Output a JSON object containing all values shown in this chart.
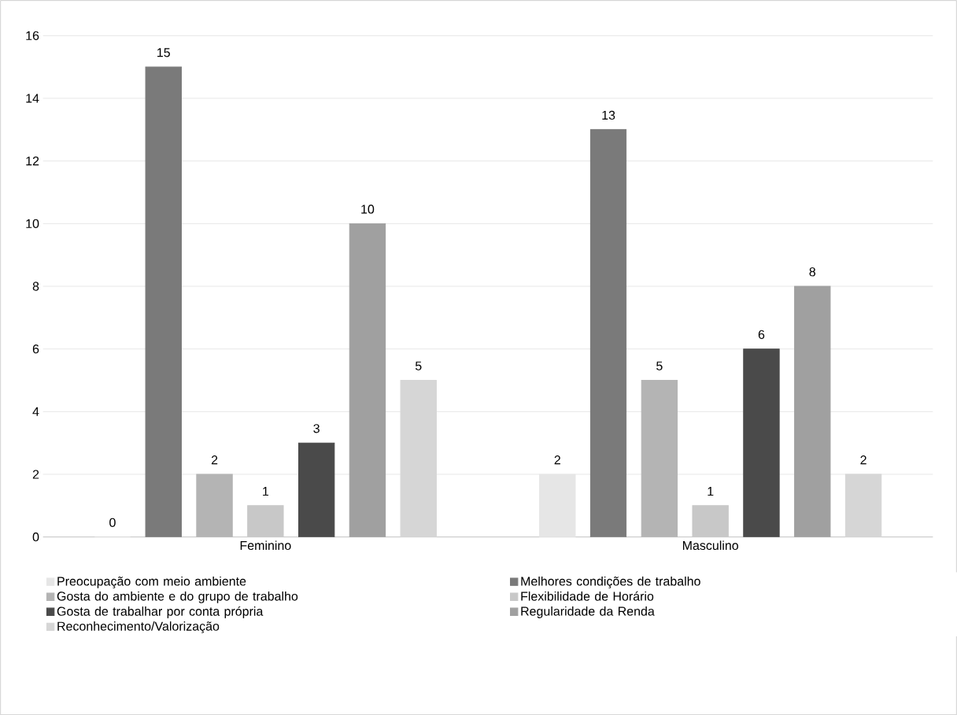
{
  "chart_data": {
    "type": "bar",
    "categories": [
      "Feminino",
      "Masculino"
    ],
    "series": [
      {
        "name": "Preocupação com meio ambiente",
        "color": "#e6e6e6",
        "values": [
          0,
          2
        ]
      },
      {
        "name": "Melhores condições de trabalho",
        "color": "#7a7a7a",
        "values": [
          15,
          13
        ]
      },
      {
        "name": "Gosta do ambiente e do grupo de trabalho",
        "color": "#b4b4b4",
        "values": [
          2,
          5
        ]
      },
      {
        "name": "Flexibilidade de Horário",
        "color": "#c8c8c8",
        "values": [
          1,
          1
        ]
      },
      {
        "name": "Gosta de trabalhar por conta própria",
        "color": "#4a4a4a",
        "values": [
          3,
          6
        ]
      },
      {
        "name": "Regularidade da Renda",
        "color": "#a0a0a0",
        "values": [
          10,
          8
        ]
      },
      {
        "name": "Reconhecimento/Valorização",
        "color": "#d6d6d6",
        "values": [
          5,
          2
        ]
      }
    ],
    "ylim": [
      0,
      16
    ],
    "yticks": [
      0,
      2,
      4,
      6,
      8,
      10,
      12,
      14,
      16
    ],
    "grid": "y",
    "legend": "bottom",
    "data_labels": true
  }
}
